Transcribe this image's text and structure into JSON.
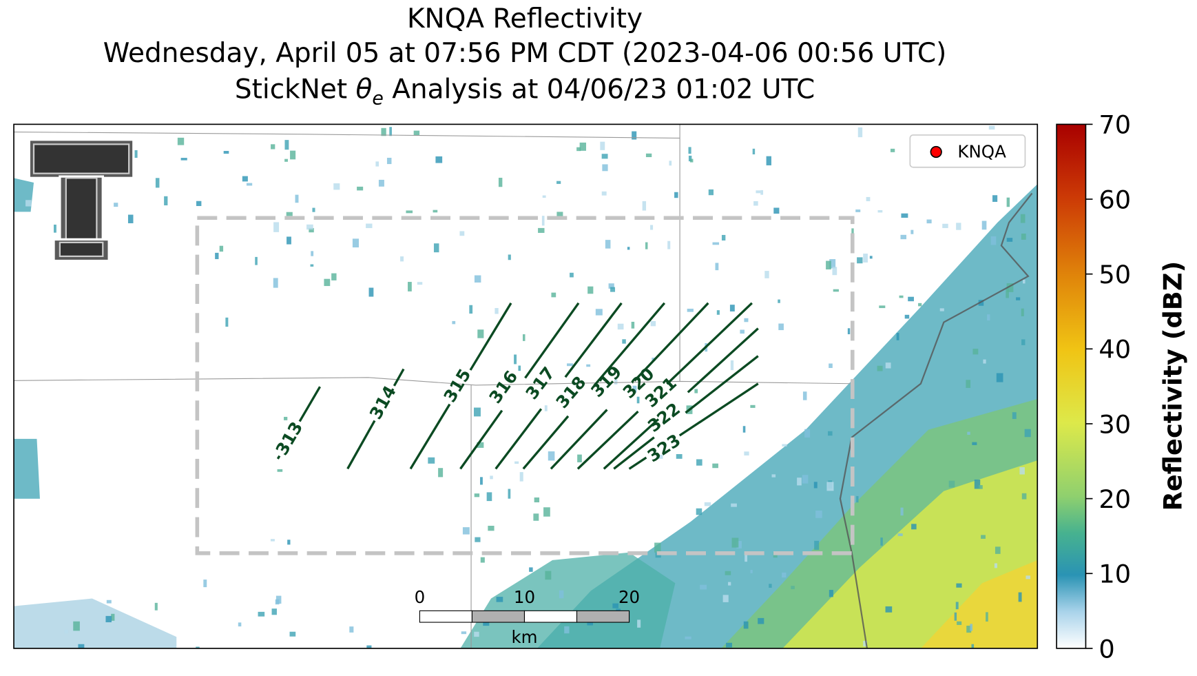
{
  "title": {
    "line1": "KNQA Reflectivity",
    "line2": "Wednesday, April 05 at 07:56 PM CDT (2023-04-06 00:56 UTC)",
    "line3": {
      "prefix": "StickNet ",
      "symbol": "θ",
      "subscript": "e",
      "suffix": " Analysis at 04/06/23 01:02 UTC"
    }
  },
  "legend": {
    "label": "KNQA",
    "color": "#ff0000"
  },
  "contour_labels": [
    313,
    314,
    315,
    316,
    317,
    318,
    319,
    320,
    321,
    322,
    323
  ],
  "contour_color": "#0b4a22",
  "scale_bar": {
    "ticks": [
      0,
      10,
      20
    ],
    "unit": "km"
  },
  "colorbar": {
    "label": "Reflectivity (dBZ)",
    "lim": [
      0,
      70
    ],
    "ticks": [
      0,
      10,
      20,
      30,
      40,
      50,
      60,
      70
    ]
  }
}
